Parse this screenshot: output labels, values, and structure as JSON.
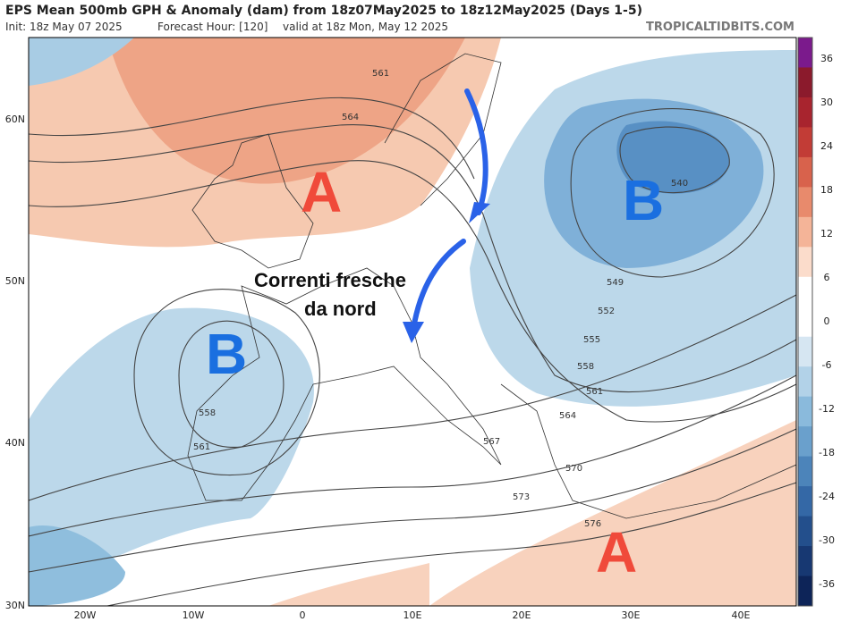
{
  "header": {
    "title": "EPS Mean 500mb GPH & Anomaly (dam) from 18z07May2025 to 18z12May2025 (Days 1-5)",
    "init": "Init: 18z May 07 2025",
    "forecast_hour": "Forecast Hour: [120]",
    "valid": "valid at 18z Mon, May 12 2025",
    "source": "TROPICALTIDBITS.COM"
  },
  "axes": {
    "lat": [
      "60N",
      "50N",
      "40N",
      "30N"
    ],
    "lon": [
      "20W",
      "10W",
      "0",
      "10E",
      "20E",
      "30E",
      "40E"
    ]
  },
  "colorbar": {
    "ticks": [
      "36",
      "30",
      "24",
      "18",
      "12",
      "6",
      "0",
      "-6",
      "-12",
      "-18",
      "-24",
      "-30",
      "-36"
    ]
  },
  "contours": [
    "561",
    "564",
    "540",
    "549",
    "552",
    "555",
    "558",
    "561",
    "564",
    "567",
    "570",
    "573",
    "576",
    "558",
    "561"
  ],
  "annotations": {
    "high_north": "A",
    "high_south": "A",
    "low_east": "B",
    "low_west": "B",
    "text": [
      "Correnti fresche",
      "da nord"
    ]
  }
}
